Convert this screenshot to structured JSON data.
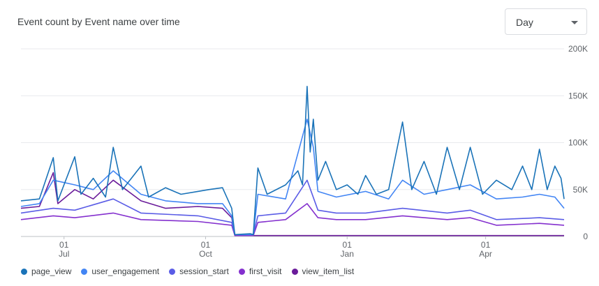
{
  "title": "Event count by Event name over time",
  "period_select": {
    "value": "Day"
  },
  "chart_data": {
    "type": "line",
    "title": "Event count by Event name over time",
    "xlabel": "",
    "ylabel": "",
    "ylim": [
      0,
      200000
    ],
    "y_ticks": [
      0,
      50000,
      100000,
      150000,
      200000
    ],
    "y_tick_labels": [
      "0",
      "50K",
      "100K",
      "150K",
      "200K"
    ],
    "y_axis_position": "right",
    "x_range": [
      "2024-06-03",
      "2025-05-22"
    ],
    "x_ticks": [
      {
        "date": "2024-07-01",
        "day": "01",
        "month": "Jul"
      },
      {
        "date": "2024-10-01",
        "day": "01",
        "month": "Oct"
      },
      {
        "date": "2025-01-01",
        "day": "01",
        "month": "Jan"
      },
      {
        "date": "2025-04-01",
        "day": "01",
        "month": "Apr"
      }
    ],
    "grid": true,
    "legend_position": "bottom-left",
    "series": [
      {
        "name": "page_view",
        "color": "#1a73b8",
        "points": [
          [
            "2024-06-03",
            38000
          ],
          [
            "2024-06-15",
            40000
          ],
          [
            "2024-06-24",
            84000
          ],
          [
            "2024-06-27",
            38000
          ],
          [
            "2024-07-08",
            85000
          ],
          [
            "2024-07-12",
            45000
          ],
          [
            "2024-07-20",
            62000
          ],
          [
            "2024-07-28",
            42000
          ],
          [
            "2024-08-02",
            95000
          ],
          [
            "2024-08-08",
            50000
          ],
          [
            "2024-08-20",
            75000
          ],
          [
            "2024-08-25",
            42000
          ],
          [
            "2024-09-05",
            52000
          ],
          [
            "2024-09-15",
            45000
          ],
          [
            "2024-09-26",
            48000
          ],
          [
            "2024-10-03",
            50000
          ],
          [
            "2024-10-12",
            52000
          ],
          [
            "2024-10-18",
            30000
          ],
          [
            "2024-10-20",
            2000
          ],
          [
            "2024-10-30",
            3000
          ],
          [
            "2024-11-01",
            2000
          ],
          [
            "2024-11-04",
            73000
          ],
          [
            "2024-11-10",
            45000
          ],
          [
            "2024-11-22",
            55000
          ],
          [
            "2024-11-30",
            70000
          ],
          [
            "2024-12-03",
            55000
          ],
          [
            "2024-12-06",
            160000
          ],
          [
            "2024-12-08",
            90000
          ],
          [
            "2024-12-10",
            125000
          ],
          [
            "2024-12-13",
            60000
          ],
          [
            "2024-12-18",
            80000
          ],
          [
            "2024-12-25",
            50000
          ],
          [
            "2025-01-01",
            55000
          ],
          [
            "2025-01-08",
            45000
          ],
          [
            "2025-01-13",
            65000
          ],
          [
            "2025-01-20",
            45000
          ],
          [
            "2025-01-28",
            50000
          ],
          [
            "2025-02-06",
            122000
          ],
          [
            "2025-02-12",
            50000
          ],
          [
            "2025-02-20",
            80000
          ],
          [
            "2025-02-28",
            45000
          ],
          [
            "2025-03-07",
            95000
          ],
          [
            "2025-03-15",
            50000
          ],
          [
            "2025-03-22",
            95000
          ],
          [
            "2025-03-30",
            45000
          ],
          [
            "2025-04-08",
            60000
          ],
          [
            "2025-04-18",
            50000
          ],
          [
            "2025-04-25",
            75000
          ],
          [
            "2025-05-01",
            50000
          ],
          [
            "2025-05-06",
            93000
          ],
          [
            "2025-05-11",
            50000
          ],
          [
            "2025-05-16",
            75000
          ],
          [
            "2025-05-20",
            62000
          ],
          [
            "2025-05-22",
            40000
          ]
        ]
      },
      {
        "name": "user_engagement",
        "color": "#4285f4",
        "points": [
          [
            "2024-06-03",
            32000
          ],
          [
            "2024-06-15",
            35000
          ],
          [
            "2024-06-24",
            60000
          ],
          [
            "2024-07-08",
            55000
          ],
          [
            "2024-07-20",
            50000
          ],
          [
            "2024-08-02",
            70000
          ],
          [
            "2024-08-20",
            45000
          ],
          [
            "2024-09-05",
            38000
          ],
          [
            "2024-09-26",
            35000
          ],
          [
            "2024-10-12",
            35000
          ],
          [
            "2024-10-18",
            22000
          ],
          [
            "2024-10-20",
            2000
          ],
          [
            "2024-11-01",
            2000
          ],
          [
            "2024-11-04",
            45000
          ],
          [
            "2024-11-22",
            40000
          ],
          [
            "2024-12-06",
            125000
          ],
          [
            "2024-12-10",
            95000
          ],
          [
            "2024-12-13",
            48000
          ],
          [
            "2024-12-25",
            42000
          ],
          [
            "2025-01-13",
            48000
          ],
          [
            "2025-01-28",
            40000
          ],
          [
            "2025-02-06",
            60000
          ],
          [
            "2025-02-20",
            45000
          ],
          [
            "2025-03-07",
            50000
          ],
          [
            "2025-03-22",
            55000
          ],
          [
            "2025-04-08",
            40000
          ],
          [
            "2025-04-25",
            42000
          ],
          [
            "2025-05-06",
            45000
          ],
          [
            "2025-05-16",
            42000
          ],
          [
            "2025-05-22",
            30000
          ]
        ]
      },
      {
        "name": "session_start",
        "color": "#5a5ce6",
        "points": [
          [
            "2024-06-03",
            25000
          ],
          [
            "2024-06-24",
            30000
          ],
          [
            "2024-07-08",
            28000
          ],
          [
            "2024-08-02",
            40000
          ],
          [
            "2024-08-20",
            25000
          ],
          [
            "2024-09-26",
            22000
          ],
          [
            "2024-10-18",
            15000
          ],
          [
            "2024-10-20",
            2000
          ],
          [
            "2024-11-01",
            2000
          ],
          [
            "2024-11-04",
            22000
          ],
          [
            "2024-11-22",
            25000
          ],
          [
            "2024-12-06",
            60000
          ],
          [
            "2024-12-13",
            28000
          ],
          [
            "2024-12-25",
            25000
          ],
          [
            "2025-01-13",
            25000
          ],
          [
            "2025-02-06",
            30000
          ],
          [
            "2025-03-07",
            25000
          ],
          [
            "2025-03-22",
            28000
          ],
          [
            "2025-04-08",
            18000
          ],
          [
            "2025-05-06",
            20000
          ],
          [
            "2025-05-22",
            18000
          ]
        ]
      },
      {
        "name": "first_visit",
        "color": "#8430ce",
        "points": [
          [
            "2024-06-03",
            18000
          ],
          [
            "2024-06-24",
            22000
          ],
          [
            "2024-07-08",
            20000
          ],
          [
            "2024-08-02",
            25000
          ],
          [
            "2024-08-20",
            18000
          ],
          [
            "2024-09-26",
            16000
          ],
          [
            "2024-10-18",
            12000
          ],
          [
            "2024-10-20",
            1000
          ],
          [
            "2024-11-01",
            1000
          ],
          [
            "2024-11-04",
            15000
          ],
          [
            "2024-11-22",
            18000
          ],
          [
            "2024-12-06",
            35000
          ],
          [
            "2024-12-13",
            20000
          ],
          [
            "2024-12-25",
            18000
          ],
          [
            "2025-01-13",
            18000
          ],
          [
            "2025-02-06",
            22000
          ],
          [
            "2025-03-07",
            18000
          ],
          [
            "2025-03-22",
            20000
          ],
          [
            "2025-04-08",
            12000
          ],
          [
            "2025-05-06",
            14000
          ],
          [
            "2025-05-22",
            12000
          ]
        ]
      },
      {
        "name": "view_item_list",
        "color": "#6a1b9a",
        "points": [
          [
            "2024-06-03",
            30000
          ],
          [
            "2024-06-15",
            32000
          ],
          [
            "2024-06-24",
            68000
          ],
          [
            "2024-06-27",
            35000
          ],
          [
            "2024-07-08",
            50000
          ],
          [
            "2024-07-20",
            40000
          ],
          [
            "2024-08-02",
            60000
          ],
          [
            "2024-08-20",
            38000
          ],
          [
            "2024-09-05",
            30000
          ],
          [
            "2024-09-26",
            32000
          ],
          [
            "2024-10-12",
            30000
          ],
          [
            "2024-10-18",
            20000
          ],
          [
            "2024-10-20",
            1000
          ],
          [
            "2025-05-22",
            1000
          ]
        ]
      }
    ]
  }
}
